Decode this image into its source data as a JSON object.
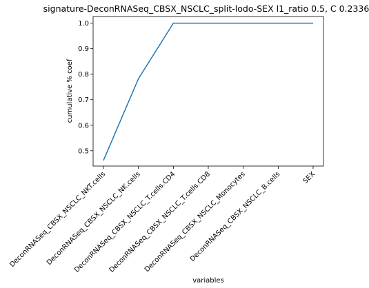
{
  "chart_data": {
    "type": "line",
    "title": "signature-DeconRNASeq_CBSX_NSCLC_split-lodo-SEX l1_ratio 0.5, C 0.2336",
    "xlabel": "variables",
    "ylabel": "cumulative % coef",
    "categories": [
      "DeconRNASeq_CBSX_NSCLC_NKT.cells",
      "DeconRNASeq_CBSX_NSCLC_NK.cells",
      "DeconRNASeq_CBSX_NSCLC_T.cells.CD4",
      "DeconRNASeq_CBSX_NSCLC_T.cells.CD8",
      "DeconRNASeq_CBSX_NSCLC_Monocytes",
      "DeconRNASeq_CBSX_NSCLC_B.cells",
      "SEX"
    ],
    "values": [
      0.462,
      0.782,
      1.0,
      1.0,
      1.0,
      1.0,
      1.0
    ],
    "ylim": [
      0.44,
      1.026
    ],
    "yticks": [
      0.5,
      0.6,
      0.7,
      0.8,
      0.9,
      1.0
    ],
    "ytick_labels": [
      "0.5",
      "0.6",
      "0.7",
      "0.8",
      "0.9",
      "1.0"
    ],
    "grid": false,
    "line_color": "#1f77b4"
  }
}
